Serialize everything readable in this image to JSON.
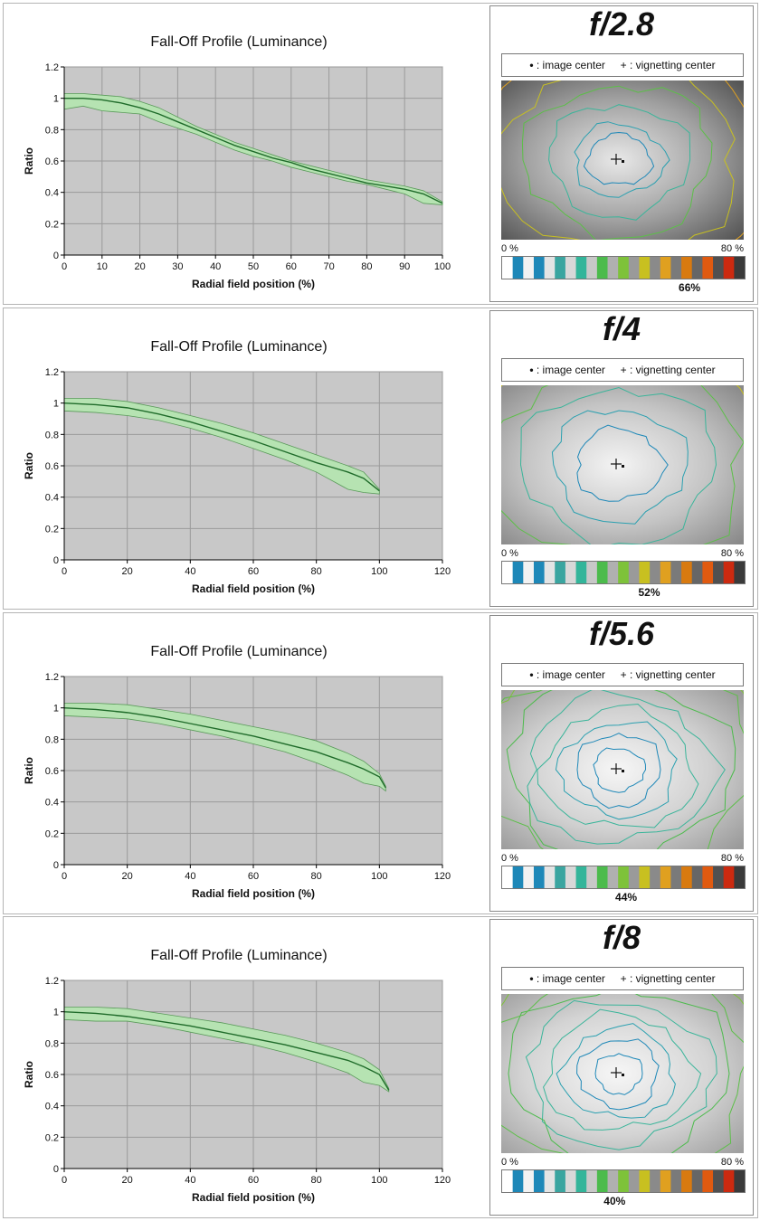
{
  "panels": [
    {
      "chart_data": {
        "type": "line",
        "title": "Fall-Off Profile (Luminance)",
        "xlabel": "Radial field position (%)",
        "ylabel": "Ratio",
        "xlim": [
          0,
          100
        ],
        "xticks": [
          0,
          10,
          20,
          30,
          40,
          50,
          60,
          70,
          80,
          90,
          100
        ],
        "ylim": [
          0,
          1.2
        ],
        "yticks": [
          0,
          0.2,
          0.4,
          0.6,
          0.8,
          1,
          1.2
        ],
        "grid": true,
        "series": [
          {
            "x": [
              0,
              5,
              10,
              15,
              20,
              25,
              30,
              35,
              40,
              45,
              50,
              55,
              60,
              65,
              70,
              75,
              80,
              85,
              90,
              95,
              100
            ],
            "values": [
              1.0,
              1.0,
              0.99,
              0.97,
              0.94,
              0.9,
              0.85,
              0.8,
              0.75,
              0.7,
              0.66,
              0.62,
              0.59,
              0.55,
              0.52,
              0.49,
              0.46,
              0.44,
              0.42,
              0.39,
              0.33
            ]
          }
        ],
        "band_upper": [
          1.03,
          1.03,
          1.02,
          1.01,
          0.98,
          0.94,
          0.88,
          0.82,
          0.77,
          0.72,
          0.68,
          0.64,
          0.6,
          0.57,
          0.54,
          0.51,
          0.48,
          0.46,
          0.44,
          0.41,
          0.34
        ],
        "band_lower": [
          0.93,
          0.95,
          0.92,
          0.91,
          0.9,
          0.85,
          0.81,
          0.77,
          0.72,
          0.67,
          0.63,
          0.6,
          0.56,
          0.53,
          0.5,
          0.47,
          0.45,
          0.42,
          0.39,
          0.33,
          0.32
        ]
      },
      "aperture": "f/2.8",
      "legend_center": ": image center",
      "legend_vig": ": vignetting center",
      "scale_min": "0 %",
      "scale_max": "80 %",
      "percent": "66%",
      "percent_value": 66
    },
    {
      "chart_data": {
        "type": "line",
        "title": "Fall-Off Profile (Luminance)",
        "xlabel": "Radial field position (%)",
        "ylabel": "Ratio",
        "xlim": [
          0,
          120
        ],
        "xticks": [
          0,
          20,
          40,
          60,
          80,
          100,
          120
        ],
        "ylim": [
          0,
          1.2
        ],
        "yticks": [
          0,
          0.2,
          0.4,
          0.6,
          0.8,
          1,
          1.2
        ],
        "grid": true,
        "series": [
          {
            "x": [
              0,
              10,
              20,
              30,
              40,
              50,
              60,
              70,
              80,
              90,
              95,
              100
            ],
            "values": [
              1.0,
              0.99,
              0.97,
              0.93,
              0.88,
              0.82,
              0.76,
              0.69,
              0.62,
              0.56,
              0.52,
              0.44
            ]
          }
        ],
        "band_upper": [
          1.03,
          1.03,
          1.01,
          0.97,
          0.92,
          0.87,
          0.81,
          0.74,
          0.67,
          0.6,
          0.56,
          0.45
        ],
        "band_lower": [
          0.95,
          0.94,
          0.92,
          0.89,
          0.84,
          0.78,
          0.71,
          0.64,
          0.56,
          0.45,
          0.43,
          0.42
        ]
      },
      "aperture": "f/4",
      "legend_center": ": image center",
      "legend_vig": ": vignetting center",
      "scale_min": "0 %",
      "scale_max": "80 %",
      "percent": "52%",
      "percent_value": 52
    },
    {
      "chart_data": {
        "type": "line",
        "title": "Fall-Off Profile (Luminance)",
        "xlabel": "Radial field position (%)",
        "ylabel": "Ratio",
        "xlim": [
          0,
          120
        ],
        "xticks": [
          0,
          20,
          40,
          60,
          80,
          100,
          120
        ],
        "ylim": [
          0,
          1.2
        ],
        "yticks": [
          0,
          0.2,
          0.4,
          0.6,
          0.8,
          1,
          1.2
        ],
        "grid": true,
        "series": [
          {
            "x": [
              0,
              10,
              20,
              30,
              40,
              50,
              60,
              70,
              80,
              90,
              95,
              100,
              102
            ],
            "values": [
              1.0,
              0.99,
              0.97,
              0.94,
              0.9,
              0.86,
              0.82,
              0.77,
              0.72,
              0.65,
              0.61,
              0.56,
              0.49
            ]
          }
        ],
        "band_upper": [
          1.03,
          1.03,
          1.02,
          0.99,
          0.96,
          0.92,
          0.88,
          0.84,
          0.79,
          0.71,
          0.66,
          0.58,
          0.5
        ],
        "band_lower": [
          0.95,
          0.94,
          0.93,
          0.9,
          0.86,
          0.82,
          0.77,
          0.72,
          0.65,
          0.57,
          0.52,
          0.5,
          0.47
        ]
      },
      "aperture": "f/5.6",
      "legend_center": ": image center",
      "legend_vig": ": vignetting center",
      "scale_min": "0 %",
      "scale_max": "80 %",
      "percent": "44%",
      "percent_value": 44
    },
    {
      "chart_data": {
        "type": "line",
        "title": "Fall-Off Profile (Luminance)",
        "xlabel": "Radial field position (%)",
        "ylabel": "Ratio",
        "xlim": [
          0,
          120
        ],
        "xticks": [
          0,
          20,
          40,
          60,
          80,
          100,
          120
        ],
        "ylim": [
          0,
          1.2
        ],
        "yticks": [
          0,
          0.2,
          0.4,
          0.6,
          0.8,
          1,
          1.2
        ],
        "grid": true,
        "series": [
          {
            "x": [
              0,
              10,
              20,
              30,
              40,
              50,
              60,
              70,
              80,
              90,
              95,
              100,
              103
            ],
            "values": [
              1.0,
              0.99,
              0.97,
              0.94,
              0.91,
              0.87,
              0.83,
              0.79,
              0.74,
              0.69,
              0.65,
              0.6,
              0.5
            ]
          }
        ],
        "band_upper": [
          1.03,
          1.03,
          1.02,
          0.99,
          0.96,
          0.93,
          0.89,
          0.85,
          0.8,
          0.74,
          0.7,
          0.63,
          0.51
        ],
        "band_lower": [
          0.95,
          0.94,
          0.94,
          0.91,
          0.87,
          0.83,
          0.79,
          0.74,
          0.68,
          0.61,
          0.55,
          0.53,
          0.49
        ]
      },
      "aperture": "f/8",
      "legend_center": ": image center",
      "legend_vig": ": vignetting center",
      "scale_min": "0 %",
      "scale_max": "80 %",
      "percent": "40%",
      "percent_value": 40
    }
  ],
  "scale_colors": [
    "#ffffff",
    "#1e88b8",
    "#f2f2f2",
    "#1e88b8",
    "#e4e4e4",
    "#3aa5a0",
    "#d8d8d8",
    "#33b59a",
    "#c8c8c8",
    "#4cbb4c",
    "#b0b0b0",
    "#7ec23a",
    "#9a9a9a",
    "#c8c020",
    "#8a8a8a",
    "#e0a020",
    "#7a7a7a",
    "#d87a10",
    "#666666",
    "#e05a10",
    "#505050",
    "#cc2a10",
    "#3a3a3a"
  ],
  "colors": {
    "plot_bg": "#c8c8c8",
    "band_fill": "#b6e3b2",
    "band_edge": "#5a9a5a",
    "line": "#1f6b2a"
  }
}
